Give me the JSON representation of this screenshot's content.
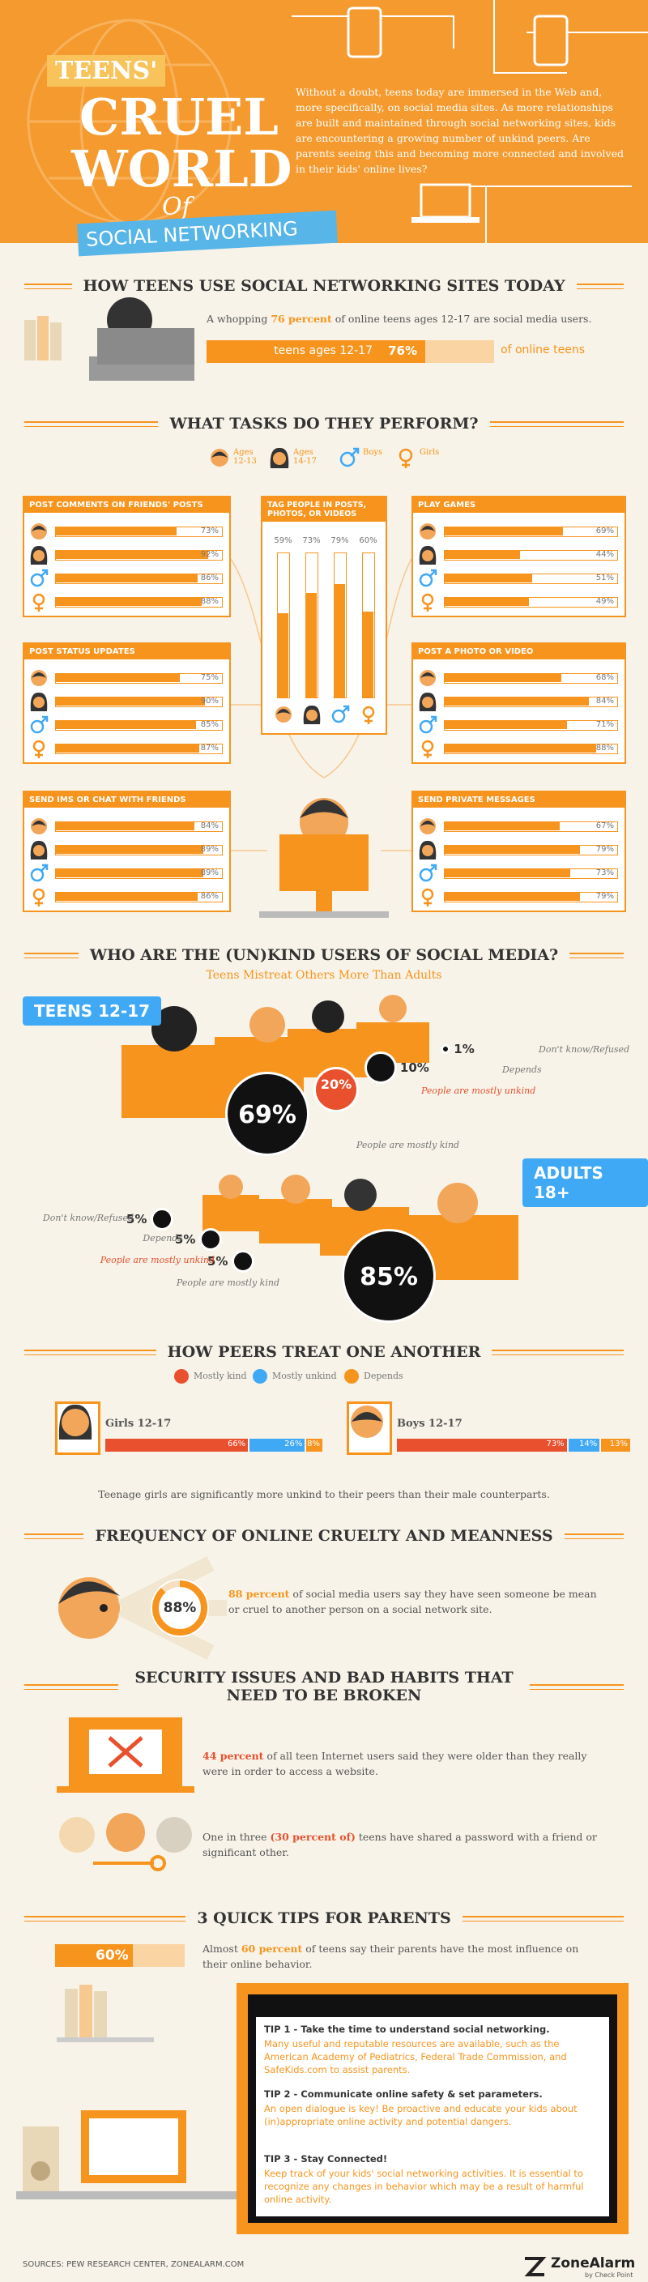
{
  "header": {
    "title_teens": "TEENS'",
    "title_cruel": "CRUEL",
    "title_world": "WORLD",
    "title_of": "Of",
    "title_banner": "SOCIAL NETWORKING",
    "intro": "Without a doubt, teens today are immersed in the Web and, more specifically, on social media sites. As more relationships are built and maintained through social networking sites, kids are encountering a growing number of unkind peers. Are parents seeing this and becoming more connected and involved in their kids' online lives?"
  },
  "usage": {
    "heading": "HOW TEENS USE SOCIAL NETWORKING SITES TODAY",
    "text": {
      "pre": "A whopping ",
      "em": "76 percent",
      "post": " of online teens ages 12-17 are social media users."
    },
    "bar": {
      "label": "teens ages 12-17",
      "value": 76,
      "value_label": "76%",
      "suffix": "of online teens"
    }
  },
  "tasks": {
    "heading": "WHAT TASKS DO THEY PERFORM?",
    "legend": [
      "Ages 12-13",
      "Ages 14-17",
      "Boys",
      "Girls"
    ],
    "panels": [
      {
        "title": "POST COMMENTS ON FRIENDS' POSTS",
        "values": [
          {
            "value": 73,
            "label": "73%"
          },
          {
            "value": 92,
            "label": "92%"
          },
          {
            "value": 86,
            "label": "86%"
          },
          {
            "value": 88,
            "label": "88%"
          }
        ]
      },
      {
        "title": "TAG PEOPLE IN POSTS, PHOTOS, OR VIDEOS",
        "values": [
          {
            "value": 59,
            "label": "59%"
          },
          {
            "value": 73,
            "label": "73%"
          },
          {
            "value": 79,
            "label": "79%"
          },
          {
            "value": 60,
            "label": "60%"
          }
        ]
      },
      {
        "title": "PLAY GAMES",
        "values": [
          {
            "value": 69,
            "label": "69%"
          },
          {
            "value": 44,
            "label": "44%"
          },
          {
            "value": 51,
            "label": "51%"
          },
          {
            "value": 49,
            "label": "49%"
          }
        ]
      },
      {
        "title": "POST STATUS UPDATES",
        "values": [
          {
            "value": 75,
            "label": "75%"
          },
          {
            "value": 90,
            "label": "90%"
          },
          {
            "value": 85,
            "label": "85%"
          },
          {
            "value": 87,
            "label": "87%"
          }
        ]
      },
      {
        "title": "POST A PHOTO OR VIDEO",
        "values": [
          {
            "value": 68,
            "label": "68%"
          },
          {
            "value": 84,
            "label": "84%"
          },
          {
            "value": 71,
            "label": "71%"
          },
          {
            "value": 88,
            "label": "88%"
          }
        ]
      },
      {
        "title": "SEND IMS OR CHAT WITH FRIENDS",
        "values": [
          {
            "value": 84,
            "label": "84%"
          },
          {
            "value": 89,
            "label": "89%"
          },
          {
            "value": 89,
            "label": "89%"
          },
          {
            "value": 86,
            "label": "86%"
          }
        ]
      },
      {
        "title": "SEND PRIVATE MESSAGES",
        "values": [
          {
            "value": 67,
            "label": "67%"
          },
          {
            "value": 79,
            "label": "79%"
          },
          {
            "value": 73,
            "label": "73%"
          },
          {
            "value": 79,
            "label": "79%"
          }
        ]
      }
    ]
  },
  "kind": {
    "heading": "WHO ARE THE (UN)KIND USERS OF SOCIAL MEDIA?",
    "subtitle": "Teens Mistreat Others More Than Adults",
    "teens": {
      "badge": "TEENS 12-17",
      "items": [
        {
          "value": 69,
          "label": "69%",
          "text": "People are mostly kind",
          "color": "#111111"
        },
        {
          "value": 20,
          "label": "20%",
          "text": "People are mostly unkind",
          "color": "#e8502e"
        },
        {
          "value": 10,
          "label": "10%",
          "text": "Depends",
          "color": "#111111"
        },
        {
          "value": 1,
          "label": "1%",
          "text": "Don't know/Refused",
          "color": "#111111"
        }
      ]
    },
    "adults": {
      "badge": "ADULTS 18+",
      "items": [
        {
          "value": 85,
          "label": "85%",
          "text": "People are mostly kind",
          "color": "#111111"
        },
        {
          "value": 5,
          "label": "5%",
          "text": "People are mostly unkind",
          "color": "#111111"
        },
        {
          "value": 5,
          "label": "5%",
          "text": "Depends",
          "color": "#111111"
        },
        {
          "value": 5,
          "label": "5%",
          "text": "Don't know/Refused",
          "color": "#111111"
        }
      ]
    }
  },
  "peers": {
    "heading": "HOW PEERS TREAT ONE ANOTHER",
    "legend": [
      {
        "name": "Mostly kind",
        "color": "#e8502e"
      },
      {
        "name": "Mostly unkind",
        "color": "#3fa9f5"
      },
      {
        "name": "Depends",
        "color": "#f7941d"
      }
    ],
    "groups": [
      {
        "name": "Girls 12-17",
        "values": [
          {
            "value": 66,
            "label": "66%"
          },
          {
            "value": 26,
            "label": "26%"
          },
          {
            "value": 8,
            "label": "8%"
          }
        ]
      },
      {
        "name": "Boys 12-17",
        "values": [
          {
            "value": 73,
            "label": "73%"
          },
          {
            "value": 14,
            "label": "14%"
          },
          {
            "value": 13,
            "label": "13%"
          }
        ]
      }
    ],
    "note": "Teenage girls are significantly more unkind to their peers than their male counterparts."
  },
  "frequency": {
    "heading": "FREQUENCY OF ONLINE CRUELTY AND MEANNESS",
    "value": 88,
    "label": "88%",
    "text": {
      "em": "88 percent",
      "post": " of social media users say they have seen someone be mean or cruel to another person on a social network site."
    }
  },
  "security": {
    "heading": "SECURITY ISSUES AND BAD HABITS THAT NEED TO BE BROKEN",
    "item1": {
      "em": "44 percent",
      "post": " of all teen Internet users said they were older than they really were in order to access a website."
    },
    "item2": {
      "pre": "One in three ",
      "em": "(30 percent of)",
      "post": " teens have shared a password with a friend or significant other."
    }
  },
  "tips": {
    "heading": "3 QUICK TIPS FOR PARENTS",
    "stat": {
      "value": 60,
      "label": "60%"
    },
    "text": {
      "pre": "Almost ",
      "em": "60 percent",
      "post": " of teens say their parents have the most influence on their online behavior."
    },
    "items": [
      {
        "title": "TIP 1 - Take the time to understand social networking.",
        "body": "Many useful and reputable resources are available, such as the American Academy of Pediatrics, Federal Trade Commission, and SafeKids.com to assist parents."
      },
      {
        "title": "TIP 2 - Communicate online safety & set parameters.",
        "body": "An open dialogue is key! Be proactive and educate your kids about (in)appropriate online activity and potential dangers."
      },
      {
        "title": "TIP 3 - Stay Connected!",
        "body": "Keep track of your kids' social networking activities. It is essential to recognize any changes in behavior which may be a result of harmful online activity."
      }
    ]
  },
  "footer": {
    "sources": "SOURCES: PEW RESEARCH CENTER, ZONEALARM.COM",
    "brand": "ZoneAlarm",
    "tagline": "by Check Point"
  }
}
